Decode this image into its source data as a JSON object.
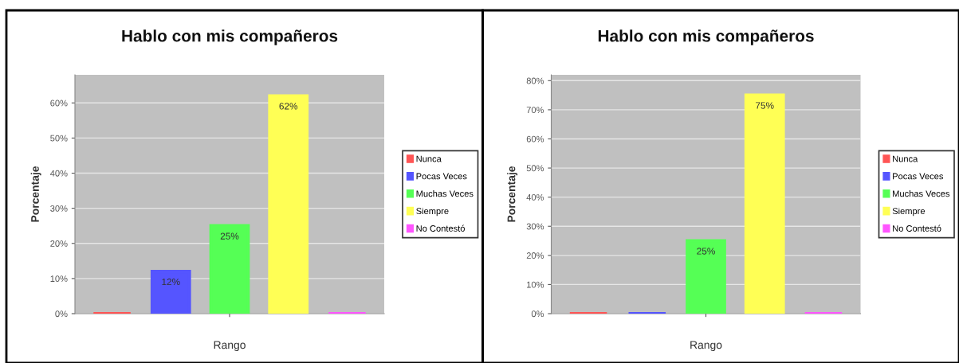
{
  "chart_data": [
    {
      "type": "bar",
      "title": "Hablo con mis compañeros",
      "xlabel": "Rango",
      "ylabel": "Porcentaje",
      "categories": [
        null
      ],
      "series": [
        {
          "name": "Nunca",
          "color": "#ff5555",
          "values": [
            0
          ]
        },
        {
          "name": "Pocas Veces",
          "color": "#5555ff",
          "values": [
            12
          ],
          "value_labels": [
            "12%"
          ]
        },
        {
          "name": "Muchas Veces",
          "color": "#55ff55",
          "values": [
            25
          ],
          "value_labels": [
            "25%"
          ]
        },
        {
          "name": "Siempre",
          "color": "#ffff55",
          "values": [
            62
          ],
          "value_labels": [
            "62%"
          ]
        },
        {
          "name": "No Contestó",
          "color": "#ff55ff",
          "values": [
            0
          ]
        }
      ],
      "ylim": [
        0,
        68
      ],
      "yticks": [
        {
          "value": 0,
          "label": "0%"
        },
        {
          "value": 10,
          "label": "10%"
        },
        {
          "value": 20,
          "label": "20%"
        },
        {
          "value": 30,
          "label": "30%"
        },
        {
          "value": 40,
          "label": "40%"
        },
        {
          "value": 50,
          "label": "50%"
        },
        {
          "value": 60,
          "label": "60%"
        }
      ],
      "grid": "y",
      "legend": "right"
    },
    {
      "type": "bar",
      "title": "Hablo con mis compañeros",
      "xlabel": "Rango",
      "ylabel": "Porcentaje",
      "categories": [
        null
      ],
      "series": [
        {
          "name": "Nunca",
          "color": "#ff5555",
          "values": [
            0
          ]
        },
        {
          "name": "Pocas Veces",
          "color": "#5555ff",
          "values": [
            0
          ]
        },
        {
          "name": "Muchas Veces",
          "color": "#55ff55",
          "values": [
            25
          ],
          "value_labels": [
            "25%"
          ]
        },
        {
          "name": "Siempre",
          "color": "#ffff55",
          "values": [
            75
          ],
          "value_labels": [
            "75%"
          ]
        },
        {
          "name": "No Contestó",
          "color": "#ff55ff",
          "values": [
            0
          ]
        }
      ],
      "ylim": [
        0,
        82
      ],
      "yticks": [
        {
          "value": 0,
          "label": "0%"
        },
        {
          "value": 10,
          "label": "10%"
        },
        {
          "value": 20,
          "label": "20%"
        },
        {
          "value": 30,
          "label": "30%"
        },
        {
          "value": 40,
          "label": "40%"
        },
        {
          "value": 50,
          "label": "50%"
        },
        {
          "value": 60,
          "label": "60%"
        },
        {
          "value": 70,
          "label": "70%"
        },
        {
          "value": 80,
          "label": "80%"
        }
      ],
      "grid": "y",
      "legend": "right"
    }
  ]
}
